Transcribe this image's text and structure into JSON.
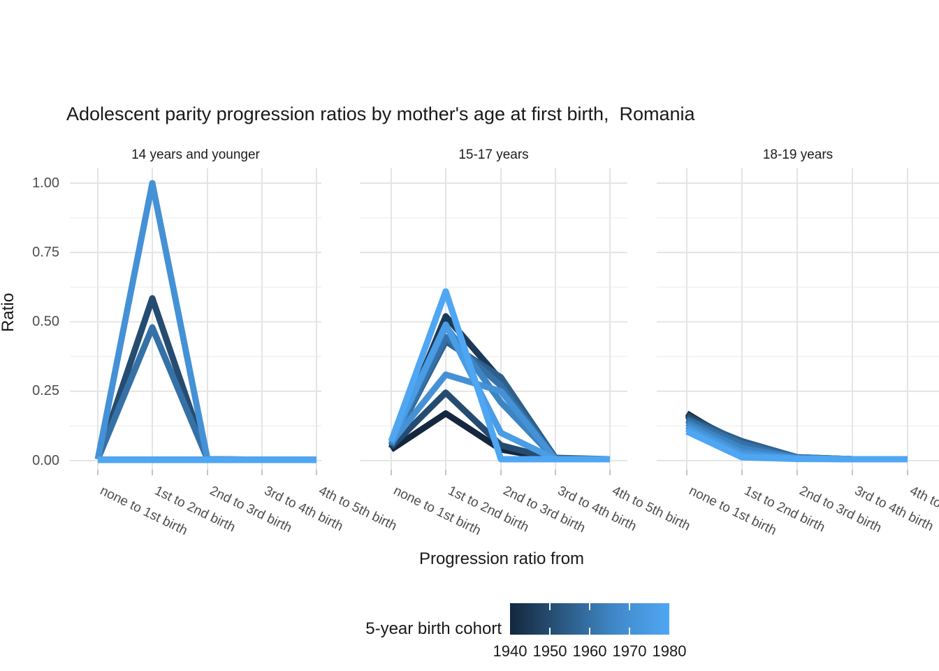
{
  "title": "Adolescent parity progression ratios by mother's age at first birth,  Romania",
  "chart_data": {
    "type": "line",
    "title": "Adolescent parity progression ratios by mother's age at first birth,  Romania",
    "xlabel": "Progression ratio from",
    "ylabel": "Ratio",
    "ylim": [
      0,
      1
    ],
    "y_tick_labels": [
      "1.00",
      "0.75",
      "0.50",
      "0.25",
      "0.00"
    ],
    "grid": "on",
    "categories": [
      "none to 1st birth",
      "1st to 2nd birth",
      "2nd to 3rd birth",
      "3rd to 4th birth",
      "4th to 5th birth"
    ],
    "cohorts": [
      "1940",
      "1945",
      "1950",
      "1955",
      "1960",
      "1965",
      "1970",
      "1975",
      "1980"
    ],
    "colors": [
      "#14273e",
      "#1c3a57",
      "#254c70",
      "#2d5f8c",
      "#3571a6",
      "#3d84c2",
      "#4591d6",
      "#4a9ce4",
      "#4fa6f2"
    ],
    "legend": {
      "title": "5-year birth cohort",
      "position": "bottom",
      "labels": [
        "1940",
        "1950",
        "1960",
        "1970",
        "1980"
      ]
    },
    "facets": [
      {
        "label": "14 years and younger",
        "series": [
          [
            0.003,
            0.003,
            0.003,
            0.003,
            0.003
          ],
          [
            0.003,
            0.003,
            0.003,
            0.003,
            0.003
          ],
          [
            0.005,
            0.585,
            0.005,
            0.003,
            0.003
          ],
          [
            0.003,
            0.003,
            0.003,
            0.003,
            0.003
          ],
          [
            0.005,
            0.48,
            0.005,
            0.003,
            0.003
          ],
          [
            0.003,
            0.003,
            0.003,
            0.003,
            0.003
          ],
          [
            0.005,
            1.0,
            0.005,
            0.003,
            0.003
          ],
          [
            0.003,
            0.003,
            0.003,
            0.003,
            0.003
          ],
          [
            0.003,
            0.003,
            0.003,
            0.003,
            0.003
          ]
        ]
      },
      {
        "label": "15-17 years",
        "series": [
          [
            0.04,
            0.17,
            0.04,
            0.005,
            0.005
          ],
          [
            0.045,
            0.52,
            0.29,
            0.005,
            0.005
          ],
          [
            0.05,
            0.245,
            0.055,
            0.005,
            0.005
          ],
          [
            0.055,
            0.43,
            0.3,
            0.01,
            0.005
          ],
          [
            0.055,
            0.445,
            0.27,
            0.005,
            0.005
          ],
          [
            0.06,
            0.485,
            0.21,
            0.005,
            0.005
          ],
          [
            0.065,
            0.31,
            0.25,
            0.005,
            0.005
          ],
          [
            0.07,
            0.49,
            0.1,
            0.005,
            0.005
          ],
          [
            0.07,
            0.61,
            0.005,
            0.005,
            0.005
          ]
        ]
      },
      {
        "label": "18-19 years",
        "series": [
          [
            0.17,
            0.05,
            0.01,
            0.005,
            0.005
          ],
          [
            0.165,
            0.06,
            0.01,
            0.005,
            0.005
          ],
          [
            0.16,
            0.065,
            0.012,
            0.005,
            0.005
          ],
          [
            0.15,
            0.07,
            0.012,
            0.005,
            0.005
          ],
          [
            0.145,
            0.06,
            0.01,
            0.005,
            0.005
          ],
          [
            0.135,
            0.045,
            0.01,
            0.005,
            0.005
          ],
          [
            0.125,
            0.03,
            0.008,
            0.005,
            0.005
          ],
          [
            0.115,
            0.02,
            0.008,
            0.005,
            0.005
          ],
          [
            0.105,
            0.012,
            0.006,
            0.005,
            0.005
          ]
        ]
      }
    ]
  }
}
